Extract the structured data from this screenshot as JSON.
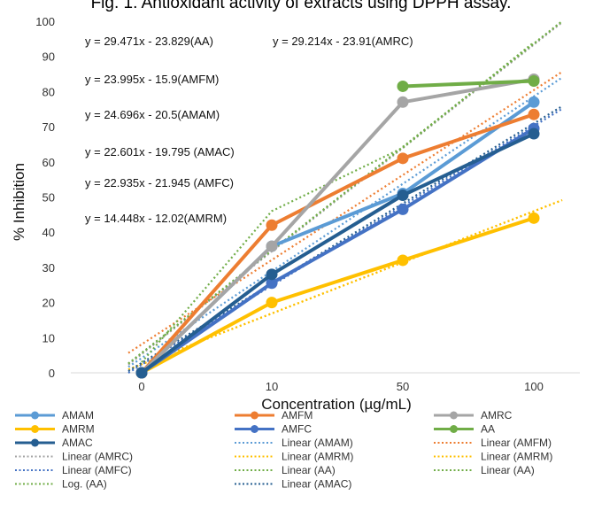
{
  "chart_data": {
    "type": "line",
    "title": "Fig. 1. Antioxidant activity of extracts using DPPH assay.",
    "xlabel": "Concentration (µg/mL)",
    "ylabel": "% Inhibition",
    "categories": [
      "0",
      "10",
      "50",
      "100"
    ],
    "ylim": [
      0,
      100
    ],
    "yticks": [
      0,
      10,
      20,
      30,
      40,
      50,
      60,
      70,
      80,
      90,
      100
    ],
    "grid": false,
    "legend_position": "bottom",
    "series": [
      {
        "name": "AMAM",
        "color": "#5B9BD5",
        "values": [
          0,
          36,
          51,
          77
        ]
      },
      {
        "name": "AMFM",
        "color": "#ED7D31",
        "values": [
          0,
          42,
          61,
          73.5
        ]
      },
      {
        "name": "AMRC",
        "color": "#A5A5A5",
        "values": [
          0,
          36,
          77,
          83.5
        ]
      },
      {
        "name": "AMRM",
        "color": "#FFC000",
        "values": [
          0,
          20,
          32,
          44
        ]
      },
      {
        "name": "AMFC",
        "color": "#4472C4",
        "values": [
          0,
          25.5,
          46.5,
          69.5
        ]
      },
      {
        "name": "AA",
        "color": "#70AD47",
        "values": [
          null,
          null,
          81.5,
          83
        ]
      },
      {
        "name": "AMAC",
        "color": "#255E91",
        "values": [
          0,
          28,
          50.5,
          68
        ]
      }
    ],
    "trendlines": [
      {
        "name": "Linear (AMAM)",
        "color": "#5B9BD5",
        "kind": "linear",
        "slope": 24.696,
        "intercept": -20.5
      },
      {
        "name": "Linear (AMFM)",
        "color": "#ED7D31",
        "kind": "linear",
        "slope": 23.995,
        "intercept": -15.9
      },
      {
        "name": "Linear (AMRC)",
        "color": "#A5A5A5",
        "kind": "linear",
        "slope": 29.214,
        "intercept": -23.91
      },
      {
        "name": "Linear (AMRM)",
        "color": "#FFC000",
        "kind": "linear",
        "slope": 14.448,
        "intercept": -12.02
      },
      {
        "name": "Linear (AMRM)",
        "color": "#FFC000",
        "kind": "linear",
        "slope": 14.448,
        "intercept": -12.02
      },
      {
        "name": "Linear (AMFC)",
        "color": "#4472C4",
        "kind": "linear",
        "slope": 22.935,
        "intercept": -21.945
      },
      {
        "name": "Linear (AA)",
        "color": "#70AD47",
        "kind": "linear",
        "slope": 29.471,
        "intercept": -23.829
      },
      {
        "name": "Linear (AA)",
        "color": "#70AD47",
        "kind": "linear",
        "slope": 29.471,
        "intercept": -23.829
      },
      {
        "name": "Log. (AA)",
        "color": "#70AD47",
        "kind": "log",
        "values": [
          3,
          46,
          64,
          94
        ]
      },
      {
        "name": "Linear (AMAC)",
        "color": "#255E91",
        "kind": "linear",
        "slope": 22.601,
        "intercept": -19.795
      }
    ],
    "equations": [
      "y = 29.471x - 23.829(AA)",
      "y = 29.214x - 23.91(AMRC)",
      "y = 23.995x - 15.9(AMFM)",
      "y = 24.696x - 20.5(AMAM)",
      "y = 22.601x - 19.795 (AMAC)",
      "y = 22.935x - 21.945 (AMFC)",
      "y = 14.448x - 12.02(AMRM)"
    ],
    "legend": [
      {
        "label": "AMAM",
        "color": "#5B9BD5",
        "style": "solid"
      },
      {
        "label": "AMFM",
        "color": "#ED7D31",
        "style": "solid"
      },
      {
        "label": "AMRC",
        "color": "#A5A5A5",
        "style": "solid"
      },
      {
        "label": "AMRM",
        "color": "#FFC000",
        "style": "solid"
      },
      {
        "label": "AMFC",
        "color": "#4472C4",
        "style": "solid"
      },
      {
        "label": "AA",
        "color": "#70AD47",
        "style": "solid"
      },
      {
        "label": "AMAC",
        "color": "#255E91",
        "style": "solid"
      },
      {
        "label": "Linear (AMAM)",
        "color": "#5B9BD5",
        "style": "dotted"
      },
      {
        "label": "Linear (AMFM)",
        "color": "#ED7D31",
        "style": "dotted"
      },
      {
        "label": "Linear (AMRC)",
        "color": "#A5A5A5",
        "style": "dotted"
      },
      {
        "label": "Linear (AMRM)",
        "color": "#FFC000",
        "style": "dotted"
      },
      {
        "label": "Linear (AMRM)",
        "color": "#FFC000",
        "style": "dotted"
      },
      {
        "label": "Linear (AMFC)",
        "color": "#4472C4",
        "style": "dotted"
      },
      {
        "label": "Linear (AA)",
        "color": "#70AD47",
        "style": "dotted"
      },
      {
        "label": "Linear (AA)",
        "color": "#70AD47",
        "style": "dotted"
      },
      {
        "label": "Log. (AA)",
        "color": "#70AD47",
        "style": "dotted"
      },
      {
        "label": "Linear (AMAC)",
        "color": "#255E91",
        "style": "dotted"
      }
    ]
  }
}
